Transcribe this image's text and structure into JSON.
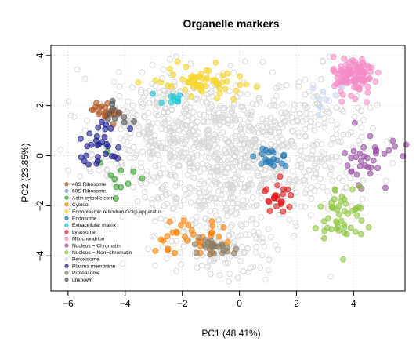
{
  "chart_data": {
    "type": "scatter",
    "title": "Organelle markers",
    "xlabel": "PC1 (48.41%)",
    "ylabel": "PC2 (23.85%)",
    "xlim": [
      -6.6,
      5.8
    ],
    "ylim": [
      -5.4,
      4.4
    ],
    "x_ticks": [
      -6,
      -4,
      -2,
      0,
      2,
      4
    ],
    "y_ticks": [
      -4,
      -2,
      0,
      2,
      4
    ],
    "grid": true,
    "legend_position": "bottom-left",
    "series": [
      {
        "name": "40S Ribosome",
        "color": "#b15928",
        "clusters": [
          {
            "cx": -4.6,
            "cy": 1.8,
            "sx": 0.3,
            "sy": 0.22,
            "n": 22
          }
        ]
      },
      {
        "name": "60S Ribosome",
        "color": "#6fa0c8",
        "clusters": []
      },
      {
        "name": "Actin cytoskeleton",
        "color": "#33a02c",
        "clusters": [
          {
            "cx": -4.3,
            "cy": -0.9,
            "sx": 0.35,
            "sy": 0.45,
            "n": 11
          }
        ]
      },
      {
        "name": "Cytosol",
        "color": "#ff7f00",
        "clusters": [
          {
            "cx": -1.8,
            "cy": -3.2,
            "sx": 0.65,
            "sy": 0.35,
            "n": 32
          }
        ]
      },
      {
        "name": "Endoplasmic reticulum/Golgi apparatus",
        "color": "#f6d42a",
        "clusters": [
          {
            "cx": -1.3,
            "cy": 3.0,
            "sx": 0.75,
            "sy": 0.3,
            "n": 60
          }
        ]
      },
      {
        "name": "Endosome",
        "color": "#1f78b4",
        "clusters": [
          {
            "cx": 1.1,
            "cy": -0.1,
            "sx": 0.3,
            "sy": 0.22,
            "n": 20
          }
        ]
      },
      {
        "name": "Extracellular matrix",
        "color": "#1fc6d6",
        "clusters": [
          {
            "cx": -2.6,
            "cy": 2.3,
            "sx": 0.35,
            "sy": 0.12,
            "n": 10
          }
        ]
      },
      {
        "name": "Lysosome",
        "color": "#e31a1c",
        "clusters": [
          {
            "cx": 1.4,
            "cy": -1.7,
            "sx": 0.25,
            "sy": 0.3,
            "n": 22
          }
        ]
      },
      {
        "name": "Mitochondrion",
        "color": "#f58cc6",
        "clusters": [
          {
            "cx": 4.0,
            "cy": 3.2,
            "sx": 0.35,
            "sy": 0.4,
            "n": 110
          }
        ]
      },
      {
        "name": "Nucleus - Chromatin",
        "color": "#984ea3",
        "clusters": [
          {
            "cx": 4.55,
            "cy": -0.2,
            "sx": 0.45,
            "sy": 0.55,
            "n": 35
          }
        ]
      },
      {
        "name": "Nucleus - Non-chromatin",
        "color": "#8dc63f",
        "clusters": [
          {
            "cx": 3.6,
            "cy": -2.4,
            "sx": 0.4,
            "sy": 0.6,
            "n": 48
          }
        ]
      },
      {
        "name": "Peroxisome",
        "color": "#c9d8ec",
        "clusters": [
          {
            "cx": 3.0,
            "cy": 2.6,
            "sx": 0.3,
            "sy": 0.4,
            "n": 9
          }
        ]
      },
      {
        "name": "Plasma membrane",
        "color": "#1a1a8c",
        "clusters": [
          {
            "cx": -4.8,
            "cy": 0.5,
            "sx": 0.4,
            "sy": 0.5,
            "n": 30
          }
        ]
      },
      {
        "name": "Proteasome",
        "color": "#8a7a60",
        "clusters": [
          {
            "cx": -0.9,
            "cy": -3.6,
            "sx": 0.4,
            "sy": 0.18,
            "n": 26
          }
        ]
      },
      {
        "name": "unknown",
        "color": "#555555",
        "clusters": [
          {
            "cx": -4.3,
            "cy": 1.5,
            "sx": 0.55,
            "sy": 0.4,
            "n": 10
          }
        ]
      }
    ],
    "unknown_background": {
      "color": "#d6d6d6",
      "n": 1300
    }
  }
}
